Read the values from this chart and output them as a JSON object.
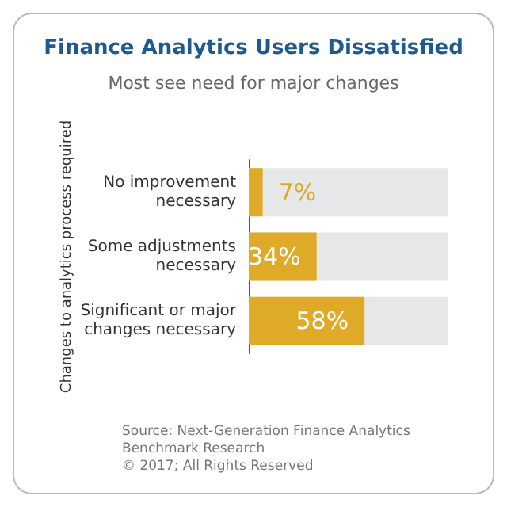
{
  "chart_data": {
    "type": "bar",
    "orientation": "horizontal",
    "title": "Finance Analytics Users Dissatisfied",
    "subtitle": "Most see need for major changes",
    "ylabel": "Changes to analytics process required",
    "categories": [
      "No improvement necessary",
      "Some adjustments necessary",
      "Significant or major changes necessary"
    ],
    "values": [
      7,
      34,
      58
    ],
    "color": "#deaa27",
    "value_labels": [
      "7%",
      "34%",
      "58%"
    ],
    "xlim": [
      0,
      100
    ],
    "tick_labels": "y",
    "grid": false,
    "annotations": [
      "Source: Next-Generation Finance Analytics Benchmark Research",
      "© 2017; All Rights Reserved"
    ]
  }
}
